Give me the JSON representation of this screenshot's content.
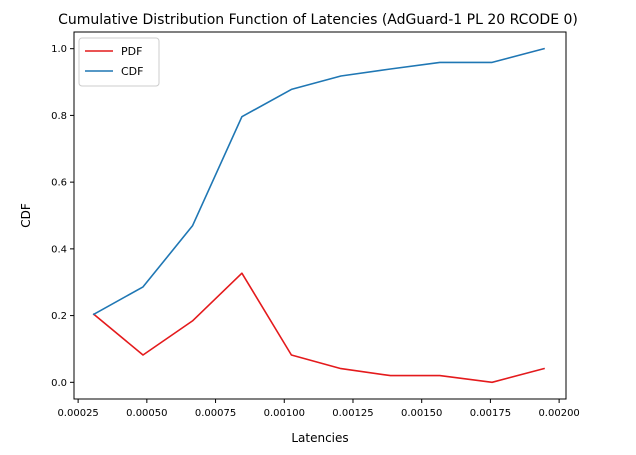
{
  "chart_data": {
    "type": "line",
    "title": "Cumulative Distribution Function of Latencies (AdGuard-1 PL 20 RCODE 0)",
    "xlabel": "Latencies",
    "ylabel": "CDF",
    "xlim": [
      0.000235,
      0.002025
    ],
    "ylim": [
      -0.05,
      1.05
    ],
    "x_ticks": [
      0.00025,
      0.0005,
      0.00075,
      0.001,
      0.00125,
      0.0015,
      0.00175,
      0.002
    ],
    "x_tick_labels": [
      "0.00025",
      "0.00050",
      "0.00075",
      "0.00100",
      "0.00125",
      "0.00150",
      "0.00175",
      "0.00200"
    ],
    "y_ticks": [
      0.0,
      0.2,
      0.4,
      0.6,
      0.8,
      1.0
    ],
    "y_tick_labels": [
      "0.0",
      "0.2",
      "0.4",
      "0.6",
      "0.8",
      "1.0"
    ],
    "x": [
      0.000307,
      0.000486,
      0.000666,
      0.000846,
      0.001026,
      0.001206,
      0.001386,
      0.001566,
      0.001756,
      0.001945
    ],
    "series": [
      {
        "name": "PDF",
        "color": "#e41a1c",
        "values": [
          0.204,
          0.082,
          0.184,
          0.327,
          0.082,
          0.041,
          0.02,
          0.02,
          0.0,
          0.041
        ]
      },
      {
        "name": "CDF",
        "color": "#1f77b4",
        "values": [
          0.204,
          0.286,
          0.469,
          0.796,
          0.878,
          0.918,
          0.939,
          0.959,
          0.959,
          1.0
        ]
      }
    ],
    "legend_position": "top-left",
    "grid": false
  }
}
